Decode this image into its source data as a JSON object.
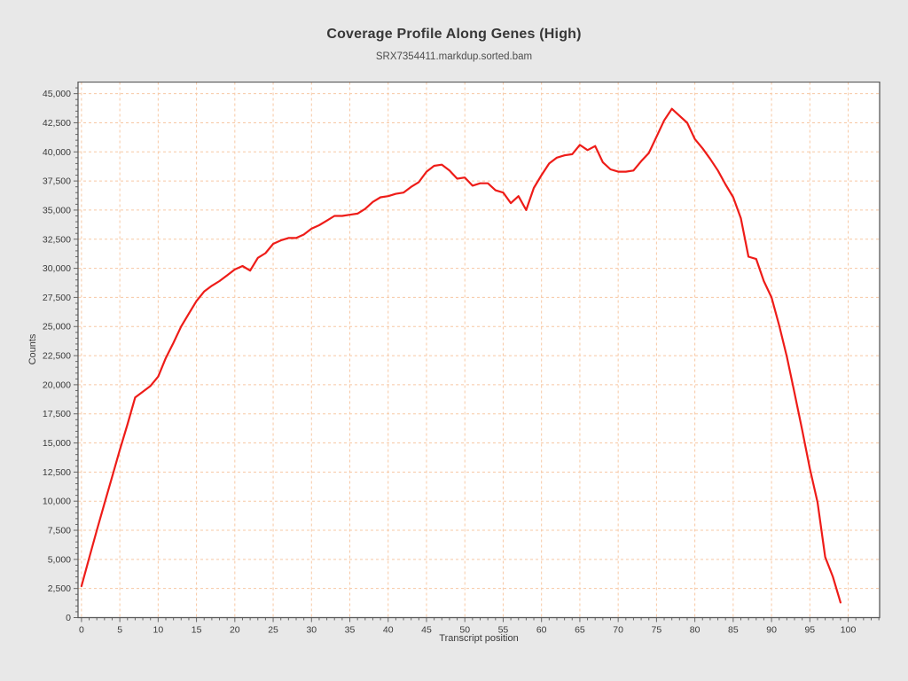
{
  "header": {
    "title": "Coverage Profile Along Genes (High)",
    "subtitle": "SRX7354411.markdup.sorted.bam"
  },
  "chart_data": {
    "type": "line",
    "title": "Coverage Profile Along Genes (High)",
    "subtitle": "SRX7354411.markdup.sorted.bam",
    "xlabel": "Transcript position",
    "ylabel": "Counts",
    "legend_position": "none",
    "grid": true,
    "grid_style": "dashed",
    "xlim": [
      -0.45,
      104.1
    ],
    "ylim": [
      0,
      46000
    ],
    "x_ticks": [
      0,
      5,
      10,
      15,
      20,
      25,
      30,
      35,
      40,
      45,
      50,
      55,
      60,
      65,
      70,
      75,
      80,
      85,
      90,
      95,
      100
    ],
    "y_ticks": [
      0,
      2500,
      5000,
      7500,
      10000,
      12500,
      15000,
      17500,
      20000,
      22500,
      25000,
      27500,
      30000,
      32500,
      35000,
      37500,
      40000,
      42500,
      45000
    ],
    "y_tick_labels": [
      "0",
      "2,500",
      "5,000",
      "7,500",
      "10,000",
      "12,500",
      "15,000",
      "17,500",
      "20,000",
      "22,500",
      "25,000",
      "27,500",
      "30,000",
      "32,500",
      "35,000",
      "37,500",
      "40,000",
      "42,500",
      "45,000"
    ],
    "x_minor_step": 1,
    "y_minor_step": 500,
    "series_name": "coverage",
    "line_color": "#ee1c18",
    "grid_color": "#f7c8a4",
    "plot_bg": "#ffffff",
    "page_bg": "#e8e8e8",
    "spine_color": "#5a5a5a",
    "x": [
      0,
      1,
      2,
      3,
      4,
      5,
      6,
      7,
      8,
      9,
      10,
      11,
      12,
      13,
      14,
      15,
      16,
      17,
      18,
      19,
      20,
      21,
      22,
      23,
      24,
      25,
      26,
      27,
      28,
      29,
      30,
      31,
      32,
      33,
      34,
      35,
      36,
      37,
      38,
      39,
      40,
      41,
      42,
      43,
      44,
      45,
      46,
      47,
      48,
      49,
      50,
      51,
      52,
      53,
      54,
      55,
      56,
      57,
      58,
      59,
      60,
      61,
      62,
      63,
      64,
      65,
      66,
      67,
      68,
      69,
      70,
      71,
      72,
      73,
      74,
      75,
      76,
      77,
      78,
      79,
      80,
      81,
      82,
      83,
      84,
      85,
      86,
      87,
      88,
      89,
      90,
      91,
      92,
      93,
      94,
      95,
      96,
      97,
      98,
      99
    ],
    "values": [
      2700,
      5100,
      7500,
      9800,
      12100,
      14400,
      16600,
      18900,
      19400,
      19900,
      20700,
      22300,
      23600,
      25000,
      26100,
      27200,
      28000,
      28500,
      28900,
      29400,
      29900,
      30200,
      29800,
      30900,
      31300,
      32100,
      32400,
      32600,
      32600,
      32900,
      33400,
      33700,
      34100,
      34500,
      34500,
      34600,
      34700,
      35100,
      35700,
      36100,
      36200,
      36400,
      36500,
      37000,
      37400,
      38300,
      38800,
      38900,
      38400,
      37700,
      37800,
      37100,
      37300,
      37300,
      36700,
      36500,
      35600,
      36200,
      35000,
      36900,
      38000,
      39000,
      39500,
      39700,
      39800,
      40600,
      40150,
      40500,
      39100,
      38500,
      38300,
      38300,
      38400,
      39200,
      39900,
      41300,
      42700,
      43700,
      43100,
      42500,
      41100,
      40300,
      39400,
      38400,
      37200,
      36100,
      34300,
      31000,
      30800,
      28900,
      27500,
      25100,
      22400,
      19300,
      16100,
      12800,
      9900,
      5200,
      3500,
      1300
    ]
  }
}
